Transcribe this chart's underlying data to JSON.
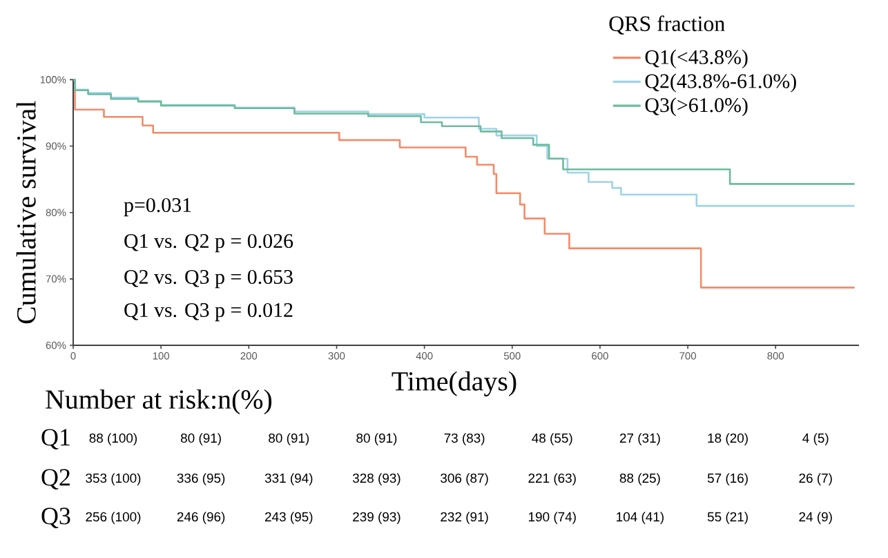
{
  "chart_data": {
    "type": "step",
    "xlabel": "Time(days)",
    "ylabel": "Cumulative survival",
    "legend_title": "QRS fraction",
    "legend": "top right",
    "xlim": [
      0,
      895
    ],
    "ylim": [
      60,
      100
    ],
    "xticks": [
      0,
      100,
      200,
      300,
      400,
      500,
      600,
      700,
      800
    ],
    "yticks": [
      {
        "value": 60,
        "label": "60%"
      },
      {
        "value": 70,
        "label": "70%"
      },
      {
        "value": 80,
        "label": "80%"
      },
      {
        "value": 90,
        "label": "90%"
      },
      {
        "value": 100,
        "label": "100%"
      }
    ],
    "series": [
      {
        "name": "Q1(<43.8%)",
        "color": "#f28b6a",
        "x": [
          0,
          2,
          35,
          79,
          91,
          303,
          372,
          447,
          460,
          479,
          482,
          509,
          514,
          537,
          565,
          715,
          890
        ],
        "values": [
          100,
          95.5,
          94.4,
          93.1,
          92.0,
          90.9,
          89.8,
          88.4,
          87.2,
          85.8,
          82.9,
          81.2,
          79.1,
          76.8,
          74.6,
          68.7,
          68.7
        ]
      },
      {
        "name": "Q2(43.8%-61.0%)",
        "color": "#9ed3e6",
        "x": [
          0,
          2,
          17,
          43,
          74,
          100,
          184,
          252,
          336,
          400,
          462,
          482,
          528,
          540,
          563,
          587,
          614,
          624,
          710,
          890
        ],
        "values": [
          100,
          98.5,
          98.0,
          97.3,
          96.8,
          96.2,
          95.8,
          95.2,
          94.8,
          94.3,
          92.6,
          91.6,
          90.0,
          88.1,
          86.0,
          84.6,
          83.7,
          82.7,
          81.0,
          81.0
        ]
      },
      {
        "name": "Q3(>61.0%)",
        "color": "#6dbb9c",
        "x": [
          0,
          2,
          17,
          43,
          74,
          100,
          184,
          252,
          336,
          396,
          420,
          464,
          488,
          524,
          542,
          558,
          748,
          890
        ],
        "values": [
          100,
          98.4,
          97.8,
          97.1,
          96.7,
          96.1,
          95.7,
          94.9,
          94.5,
          93.6,
          93.0,
          92.2,
          91.2,
          90.2,
          88.1,
          86.5,
          84.3,
          84.3
        ]
      }
    ],
    "annotations": [
      "p=0.031",
      "Q1 vs. Q2   p = 0.026",
      "Q2 vs. Q3   p = 0.653",
      "Q1 vs. Q3   p = 0.012",
      "Number at risk:n(%)",
      "Q1",
      "88 (100)",
      "80 (91)",
      "80 (91)",
      "80 (91)",
      "73 (83)",
      "48 (55)",
      "27 (31)",
      "18 (20)",
      "4 (5)",
      "Q2",
      "353 (100)",
      "336 (95)",
      "331 (94)",
      "328 (93)",
      "306 (87)",
      "221 (63)",
      "88 (25)",
      "57 (16)",
      "26 (7)",
      "Q3",
      "256 (100)",
      "246 (96)",
      "243 (95)",
      "239 (93)",
      "232 (91)",
      "190 (74)",
      "104 (41)",
      "55 (21)",
      "24 (9)"
    ]
  }
}
